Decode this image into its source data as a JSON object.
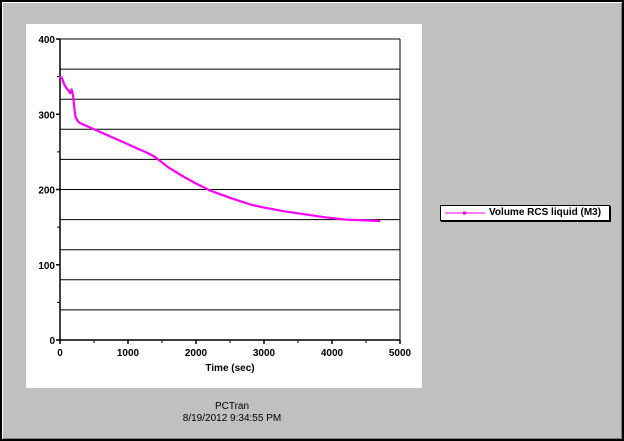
{
  "footer": {
    "app_name": "PCTran",
    "timestamp": "8/19/2012 9:34:55 PM"
  },
  "colors": {
    "frame_background": "#c0c0c0",
    "plot_background": "#ffffff",
    "series": "#ff00ff",
    "grid": "#000000"
  },
  "chart_data": {
    "type": "line",
    "title": "",
    "xlabel": "Time (sec)",
    "ylabel": "",
    "xlim": [
      0,
      5000
    ],
    "ylim": [
      0,
      400
    ],
    "xticks": [
      0,
      1000,
      2000,
      3000,
      4000,
      5000
    ],
    "yticks": [
      0,
      100,
      200,
      300,
      400
    ],
    "y_gridlines": [
      40,
      80,
      120,
      160,
      200,
      240,
      280,
      320,
      360
    ],
    "grid": true,
    "legend_position": "right",
    "series": [
      {
        "name": "Volume RCS liquid (M3)",
        "color": "#ff00ff",
        "x": [
          0,
          30,
          60,
          100,
          130,
          150,
          170,
          190,
          200,
          215,
          230,
          260,
          300,
          350,
          400,
          500,
          600,
          700,
          800,
          900,
          1000,
          1100,
          1200,
          1300,
          1400,
          1500,
          1600,
          1800,
          2000,
          2200,
          2500,
          2800,
          3000,
          3300,
          3600,
          3900,
          4200,
          4500,
          4700
        ],
        "y": [
          350,
          348,
          340,
          334,
          331,
          328,
          333,
          326,
          318,
          305,
          296,
          291,
          288,
          286,
          284,
          280,
          276,
          272,
          268,
          264,
          260,
          256,
          252,
          248,
          243,
          236,
          229,
          218,
          208,
          199,
          189,
          180,
          176,
          171,
          167,
          163,
          160,
          159,
          158
        ]
      }
    ]
  }
}
